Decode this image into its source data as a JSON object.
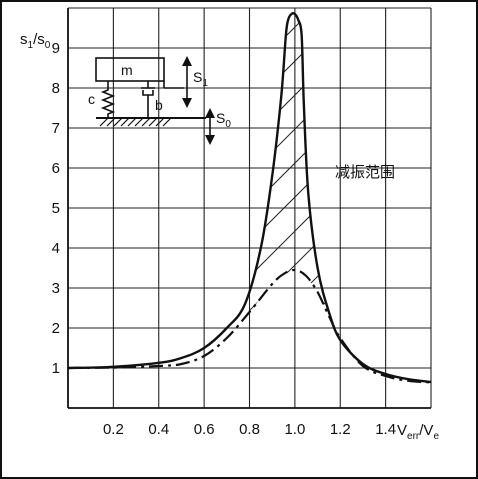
{
  "chart_data": {
    "type": "line",
    "ylabel": {
      "base": "s",
      "sub1": "1",
      "sep": "/s",
      "sub2": "0"
    },
    "xlabel": {
      "pre": "V",
      "sub1": "err",
      "mid": "/V",
      "sub2": "e"
    },
    "annotation": "减振范围",
    "xlim": [
      0,
      1.6
    ],
    "ylim": [
      0,
      10
    ],
    "x_ticks": [
      "0.2",
      "0.4",
      "0.6",
      "0.8",
      "1.0",
      "1.2",
      "1.4"
    ],
    "y_ticks": [
      "1",
      "2",
      "3",
      "4",
      "5",
      "6",
      "7",
      "8",
      "9"
    ],
    "grid": true,
    "series": [
      {
        "style": "solid",
        "x": [
          0.0,
          0.2,
          0.4,
          0.5,
          0.6,
          0.7,
          0.78,
          0.85,
          0.9,
          0.94,
          0.96,
          0.97,
          0.985,
          1.0,
          1.015,
          1.03,
          1.04,
          1.06,
          1.1,
          1.15,
          1.2,
          1.3,
          1.4,
          1.5,
          1.6
        ],
        "y": [
          1.0,
          1.03,
          1.13,
          1.25,
          1.5,
          2.0,
          2.6,
          4.0,
          5.8,
          7.8,
          9.3,
          9.7,
          9.85,
          9.85,
          9.7,
          9.3,
          7.5,
          5.3,
          3.5,
          2.4,
          1.7,
          1.1,
          0.85,
          0.72,
          0.65
        ]
      },
      {
        "style": "dash-dot",
        "x": [
          0.0,
          0.2,
          0.4,
          0.5,
          0.6,
          0.7,
          0.8,
          0.9,
          0.95,
          1.0,
          1.05,
          1.1,
          1.15,
          1.2,
          1.3,
          1.4,
          1.5,
          1.6
        ],
        "y": [
          1.0,
          1.01,
          1.05,
          1.1,
          1.3,
          1.75,
          2.4,
          3.1,
          3.35,
          3.45,
          3.3,
          2.9,
          2.3,
          1.75,
          1.05,
          0.8,
          0.68,
          0.64
        ]
      }
    ],
    "inset": {
      "mass_label": "m",
      "spring_label": "c",
      "damper_label": "b",
      "disp1": {
        "base": "S",
        "sub": "1"
      },
      "disp0": {
        "base": "S",
        "sub": "0"
      }
    }
  }
}
